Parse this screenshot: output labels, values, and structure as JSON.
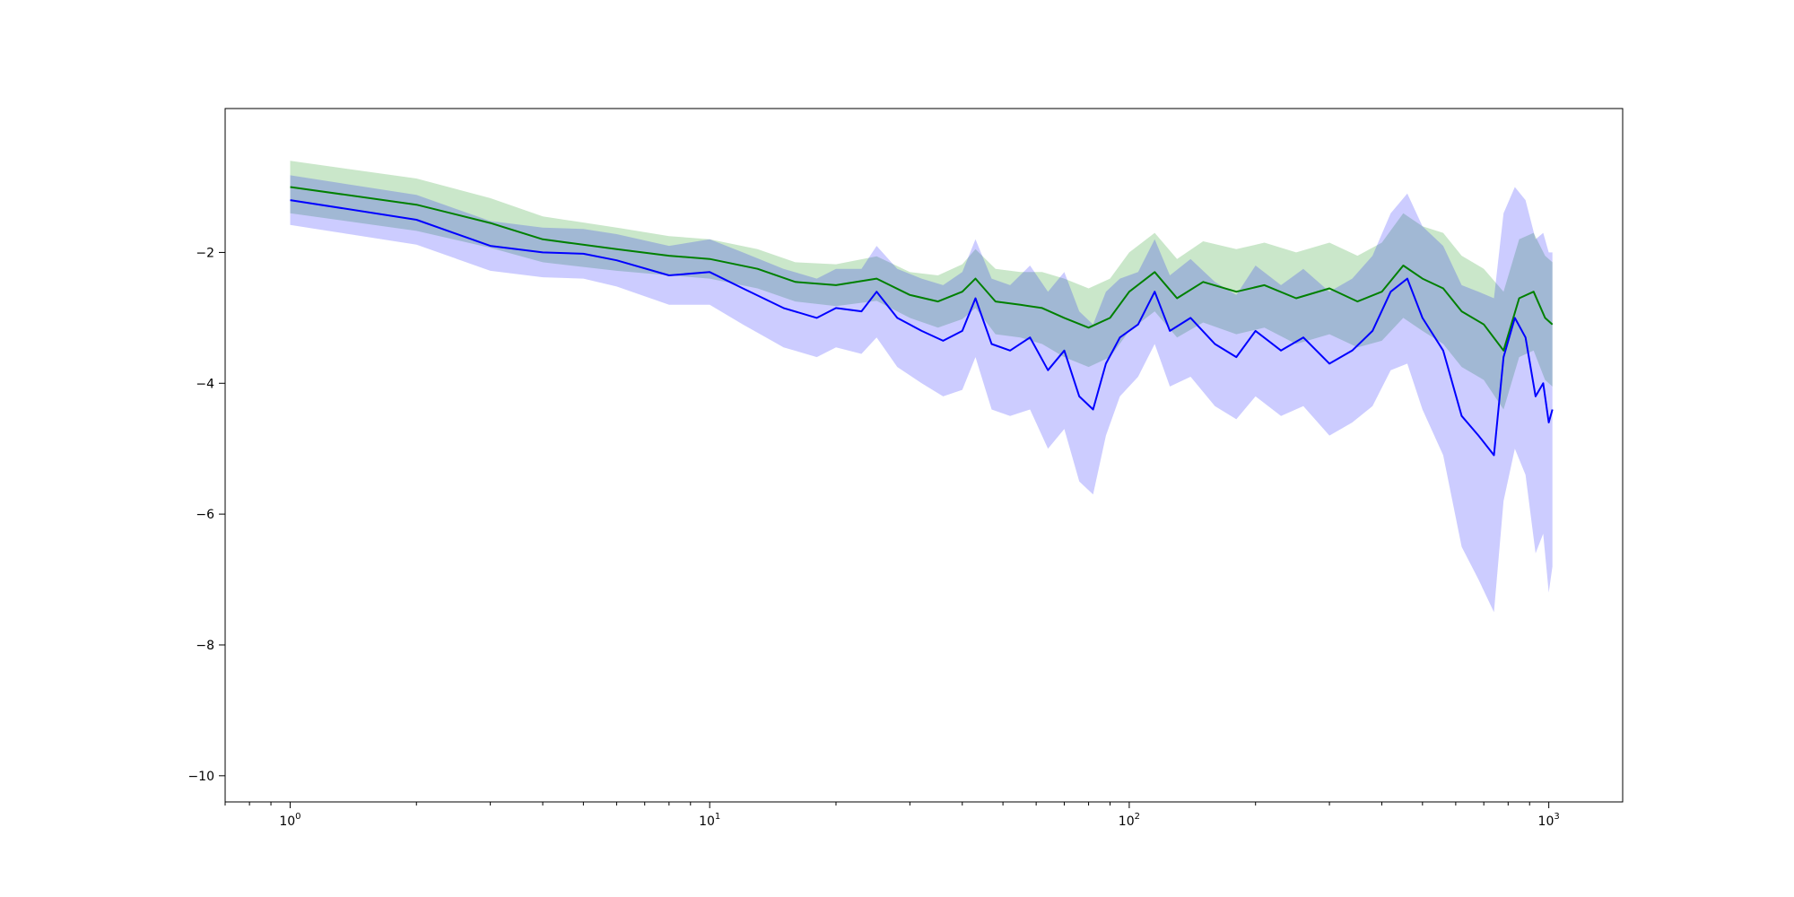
{
  "chart_data": {
    "type": "line",
    "title": "",
    "xlabel": "",
    "ylabel": "",
    "xscale": "log",
    "xlim": [
      0.7,
      1500
    ],
    "ylim": [
      -10.4,
      0.2
    ],
    "grid": false,
    "legend": "none",
    "x_ticks": [
      {
        "base": "10",
        "exp": "0",
        "value": 1
      },
      {
        "base": "10",
        "exp": "1",
        "value": 10
      },
      {
        "base": "10",
        "exp": "2",
        "value": 100
      },
      {
        "base": "10",
        "exp": "3",
        "value": 1000
      }
    ],
    "y_ticks": [
      {
        "label": "−2",
        "value": -2
      },
      {
        "label": "−4",
        "value": -4
      },
      {
        "label": "−6",
        "value": -6
      },
      {
        "label": "−8",
        "value": -8
      },
      {
        "label": "−10",
        "value": -10
      }
    ],
    "series": [
      {
        "color": "#008000",
        "band_color": "#2ca02c",
        "band_opacity": 0.25,
        "points": [
          [
            1,
            -1.0,
            0.4
          ],
          [
            2,
            -1.27,
            0.4
          ],
          [
            3,
            -1.55,
            0.38
          ],
          [
            4,
            -1.8,
            0.35
          ],
          [
            6,
            -1.95,
            0.33
          ],
          [
            8,
            -2.05,
            0.3
          ],
          [
            10,
            -2.1,
            0.3
          ],
          [
            13,
            -2.25,
            0.3
          ],
          [
            16,
            -2.45,
            0.3
          ],
          [
            20,
            -2.5,
            0.32
          ],
          [
            25,
            -2.4,
            0.34
          ],
          [
            30,
            -2.65,
            0.35
          ],
          [
            35,
            -2.75,
            0.4
          ],
          [
            40,
            -2.6,
            0.42
          ],
          [
            43,
            -2.4,
            0.45
          ],
          [
            48,
            -2.75,
            0.5
          ],
          [
            55,
            -2.8,
            0.5
          ],
          [
            62,
            -2.85,
            0.55
          ],
          [
            70,
            -3.0,
            0.6
          ],
          [
            80,
            -3.15,
            0.6
          ],
          [
            90,
            -3.0,
            0.6
          ],
          [
            100,
            -2.6,
            0.6
          ],
          [
            115,
            -2.3,
            0.6
          ],
          [
            130,
            -2.7,
            0.6
          ],
          [
            150,
            -2.45,
            0.62
          ],
          [
            180,
            -2.6,
            0.65
          ],
          [
            210,
            -2.5,
            0.65
          ],
          [
            250,
            -2.7,
            0.7
          ],
          [
            300,
            -2.55,
            0.7
          ],
          [
            350,
            -2.75,
            0.7
          ],
          [
            400,
            -2.6,
            0.75
          ],
          [
            450,
            -2.2,
            0.8
          ],
          [
            500,
            -2.4,
            0.8
          ],
          [
            560,
            -2.55,
            0.85
          ],
          [
            620,
            -2.9,
            0.85
          ],
          [
            700,
            -3.1,
            0.85
          ],
          [
            780,
            -3.5,
            0.9
          ],
          [
            850,
            -2.7,
            0.9
          ],
          [
            920,
            -2.6,
            0.9
          ],
          [
            980,
            -3.0,
            0.95
          ],
          [
            1020,
            -3.1,
            0.95
          ]
        ]
      },
      {
        "color": "#0000ff",
        "band_color": "#0000ff",
        "band_opacity": 0.2,
        "points": [
          [
            1,
            -1.2,
            0.38
          ],
          [
            2,
            -1.5,
            0.38
          ],
          [
            3,
            -1.9,
            0.38
          ],
          [
            4,
            -2.0,
            0.38
          ],
          [
            5,
            -2.02,
            0.38
          ],
          [
            6,
            -2.12,
            0.4
          ],
          [
            8,
            -2.35,
            0.45
          ],
          [
            10,
            -2.3,
            0.5
          ],
          [
            12,
            -2.55,
            0.55
          ],
          [
            15,
            -2.85,
            0.6
          ],
          [
            18,
            -3.0,
            0.6
          ],
          [
            20,
            -2.85,
            0.6
          ],
          [
            23,
            -2.9,
            0.65
          ],
          [
            25,
            -2.6,
            0.7
          ],
          [
            28,
            -3.0,
            0.75
          ],
          [
            32,
            -3.2,
            0.8
          ],
          [
            36,
            -3.35,
            0.85
          ],
          [
            40,
            -3.2,
            0.9
          ],
          [
            43,
            -2.7,
            0.9
          ],
          [
            47,
            -3.4,
            1.0
          ],
          [
            52,
            -3.5,
            1.0
          ],
          [
            58,
            -3.3,
            1.1
          ],
          [
            64,
            -3.8,
            1.2
          ],
          [
            70,
            -3.5,
            1.2
          ],
          [
            76,
            -4.2,
            1.3
          ],
          [
            82,
            -4.4,
            1.3
          ],
          [
            88,
            -3.7,
            1.1
          ],
          [
            95,
            -3.3,
            0.9
          ],
          [
            105,
            -3.1,
            0.8
          ],
          [
            115,
            -2.6,
            0.8
          ],
          [
            125,
            -3.2,
            0.85
          ],
          [
            140,
            -3.0,
            0.9
          ],
          [
            160,
            -3.4,
            0.95
          ],
          [
            180,
            -3.6,
            0.95
          ],
          [
            200,
            -3.2,
            1.0
          ],
          [
            230,
            -3.5,
            1.0
          ],
          [
            260,
            -3.3,
            1.05
          ],
          [
            300,
            -3.7,
            1.1
          ],
          [
            340,
            -3.5,
            1.1
          ],
          [
            380,
            -3.2,
            1.15
          ],
          [
            420,
            -2.6,
            1.2
          ],
          [
            460,
            -2.4,
            1.3
          ],
          [
            500,
            -3.0,
            1.4
          ],
          [
            560,
            -3.5,
            1.6
          ],
          [
            620,
            -4.5,
            2.0
          ],
          [
            680,
            -4.8,
            2.2
          ],
          [
            740,
            -5.1,
            2.4
          ],
          [
            780,
            -3.6,
            2.2
          ],
          [
            830,
            -3.0,
            2.0
          ],
          [
            880,
            -3.3,
            2.1
          ],
          [
            930,
            -4.2,
            2.4
          ],
          [
            970,
            -4.0,
            2.3
          ],
          [
            1000,
            -4.6,
            2.6
          ],
          [
            1020,
            -4.4,
            2.4
          ]
        ]
      }
    ]
  }
}
